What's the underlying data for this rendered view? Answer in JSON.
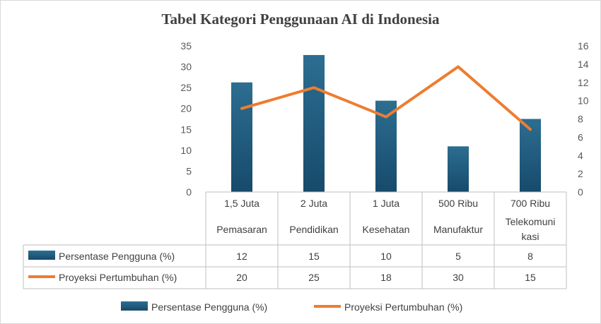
{
  "chart_data": {
    "type": "bar",
    "title": "Tabel Kategori Penggunaan AI di Indonesia",
    "categories": [
      [
        "1,5 Juta",
        "Pemasaran"
      ],
      [
        "2 Juta",
        "Pendidikan"
      ],
      [
        "1 Juta",
        "Kesehatan"
      ],
      [
        "500 Ribu",
        "Manufaktur"
      ],
      [
        "700 Ribu",
        "Telekomuni",
        "kasi"
      ]
    ],
    "series": [
      {
        "name": "Persentase Pengguna (%)",
        "type": "bar",
        "axis": "right",
        "values": [
          12,
          15,
          10,
          5,
          8
        ],
        "color": "#1f4e79"
      },
      {
        "name": "Proyeksi Pertumbuhan (%)",
        "type": "line",
        "axis": "left",
        "values": [
          20,
          25,
          18,
          30,
          15
        ],
        "color": "#ed7d31"
      }
    ],
    "ylim_left": [
      0,
      35
    ],
    "yticks_left": [
      0,
      5,
      10,
      15,
      20,
      25,
      30,
      35
    ],
    "ylim_right": [
      0,
      16
    ],
    "yticks_right": [
      0,
      2,
      4,
      6,
      8,
      10,
      12,
      14,
      16
    ],
    "grid": false,
    "data_table": true,
    "legend_position": "bottom"
  }
}
